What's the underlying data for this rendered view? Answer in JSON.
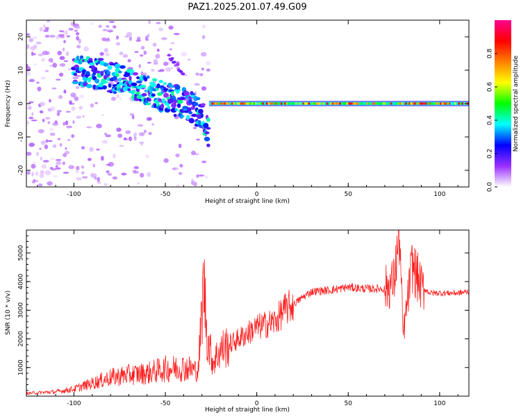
{
  "title": "PAZ1.2025.201.07.49.G09",
  "chart_data": [
    {
      "type": "heatmap",
      "xlabel": "Height of straight line (km)",
      "ylabel": "Frequency (Hz)",
      "xlim": [
        -126,
        116
      ],
      "ylim": [
        -25,
        25
      ],
      "xticks": [
        -100,
        -50,
        0,
        50,
        100
      ],
      "yticks": [
        -20,
        -10,
        0,
        10,
        20
      ],
      "colorbar": {
        "label": "Normalized spectral amplitude",
        "range": [
          0.0,
          1.0
        ],
        "ticks": [
          0.0,
          0.2,
          0.4,
          0.6,
          0.8
        ],
        "tick_labels": [
          "0.0",
          "0.2",
          "0.4",
          "0.6",
          "0.8"
        ],
        "colors": [
          "#ffffff",
          "#9b30ff",
          "#0000ff",
          "#00ffff",
          "#00ff00",
          "#ffff00",
          "#ff8000",
          "#ff0000",
          "#ff0090"
        ]
      },
      "features": {
        "noise_cloud": {
          "x_range": [
            -126,
            -26
          ],
          "f_range": [
            -25,
            25
          ],
          "amplitude": 0.1
        },
        "descending_trace": {
          "x": [
            -100,
            -85,
            -70,
            -55,
            -40,
            -30,
            -26
          ],
          "f": [
            10,
            9,
            6,
            3,
            0,
            -3,
            -10
          ],
          "amplitude": 0.35
        },
        "upper_trace": {
          "x": [
            -48,
            -40
          ],
          "f": [
            14,
            9
          ],
          "amplitude": 0.15
        },
        "carrier_line": {
          "x_range": [
            -26,
            116
          ],
          "f": 0,
          "amplitude": 0.9
        }
      }
    },
    {
      "type": "line",
      "xlabel": "Height of straight line (km)",
      "ylabel": "SNR (10 * v/v)",
      "xlim": [
        -126,
        116
      ],
      "ylim": [
        0,
        5800
      ],
      "xticks": [
        -100,
        -50,
        0,
        50,
        100
      ],
      "yticks": [
        1000,
        2000,
        3000,
        4000,
        5000
      ],
      "color": "#ff2020",
      "x": [
        -126,
        -110,
        -100,
        -90,
        -80,
        -70,
        -60,
        -50,
        -40,
        -32,
        -29,
        -27,
        -24,
        -20,
        -15,
        -10,
        -5,
        0,
        5,
        10,
        15,
        20,
        25,
        30,
        40,
        50,
        60,
        70,
        75,
        78,
        80,
        85,
        90,
        95,
        100,
        110,
        116
      ],
      "y": [
        100,
        150,
        250,
        450,
        650,
        750,
        800,
        950,
        1000,
        900,
        4000,
        2000,
        1200,
        1600,
        1800,
        2000,
        2200,
        2400,
        2500,
        2600,
        3000,
        3200,
        3450,
        3650,
        3700,
        3800,
        3750,
        3750,
        4000,
        5700,
        2100,
        4600,
        3800,
        3600,
        3600,
        3600,
        3650
      ]
    }
  ]
}
